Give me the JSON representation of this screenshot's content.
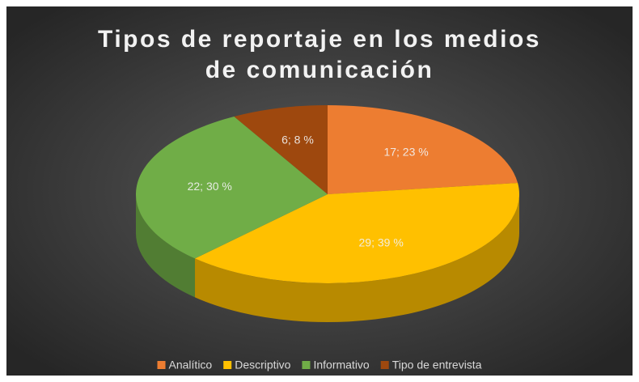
{
  "chart_data": {
    "type": "pie3d",
    "title": "Tipos de reportaje en los medios de comunicación",
    "categories": [
      "Analítico",
      "Descriptivo",
      "Informativo",
      "Tipo de entrevista"
    ],
    "values": [
      17,
      29,
      22,
      6
    ],
    "value_labels": [
      "17; 23 %",
      "29; 39 %",
      "22; 30 %",
      "6; 8 %"
    ],
    "colors": [
      "#ED7D31",
      "#FFC000",
      "#70AD47",
      "#9E480E"
    ],
    "legend": "bottom"
  }
}
